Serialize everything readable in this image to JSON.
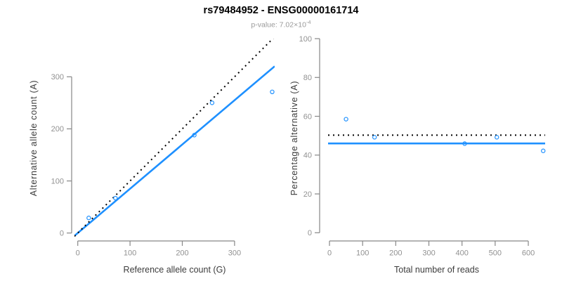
{
  "header": {
    "title": "rs79484952 - ENSG00000161714",
    "p_value": {
      "label": "p-value:",
      "value_mantissa": "7.02",
      "multiply_sign": "×",
      "base": "10",
      "exponent": "-4"
    }
  },
  "palette": {
    "accent_blue": "#1E90FF",
    "line_black": "#000000",
    "axis_gray": "#878787",
    "tick_label_gray": "#919191",
    "axis_title_dark": "#3c3c3c",
    "title_black": "#000000",
    "subtitle_gray": "#9a9a9a",
    "background": "#FFFFFF"
  },
  "chart_data": [
    {
      "type": "scatter",
      "name": "allele-count-scatter-plot",
      "xlabel": "Reference allele count (G)",
      "ylabel": "Alternative allele count (A)",
      "xlim": [
        0,
        375
      ],
      "ylim": [
        0,
        373
      ],
      "xticks": [
        0,
        100,
        200,
        300
      ],
      "yticks": [
        0,
        100,
        200,
        300
      ],
      "grid": false,
      "legend": null,
      "points": [
        [
          21,
          29
        ],
        [
          72,
          67
        ],
        [
          223,
          188
        ],
        [
          257,
          250
        ],
        [
          372,
          271
        ]
      ],
      "lines": [
        {
          "name": "regression-line",
          "style": "solid",
          "color_key": "accent_blue",
          "slope": 0.85,
          "intercept": 0
        },
        {
          "name": "identity-line",
          "style": "dotted",
          "color_key": "line_black",
          "slope": 1,
          "intercept": 0
        }
      ]
    },
    {
      "type": "scatter",
      "name": "percentage-alternative-scatter-plot",
      "xlabel": "Total number of reads",
      "ylabel": "Percentage alternative (A)",
      "xlim": [
        0,
        655
      ],
      "ylim": [
        0,
        100
      ],
      "xticks": [
        0,
        100,
        200,
        300,
        400,
        500,
        600
      ],
      "yticks": [
        0,
        20,
        40,
        60,
        80,
        100
      ],
      "grid": false,
      "legend": null,
      "points": [
        [
          50,
          58.5
        ],
        [
          136,
          49.2
        ],
        [
          408,
          45.9
        ],
        [
          505,
          49.2
        ],
        [
          645,
          42.2
        ]
      ],
      "lines": [
        {
          "name": "mean-percentage-line",
          "style": "solid",
          "color_key": "accent_blue",
          "y": 46
        },
        {
          "name": "expected-50pct-line",
          "style": "dotted",
          "color_key": "line_black",
          "y": 50.3
        }
      ]
    }
  ]
}
